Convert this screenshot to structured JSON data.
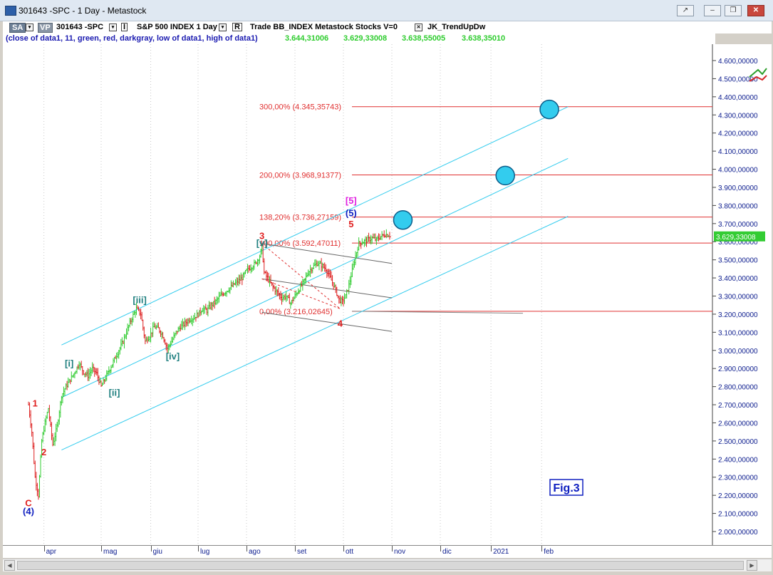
{
  "window": {
    "title": "301643 -SPC - 1 Day - Metastock",
    "min": "–",
    "restore": "❐",
    "close": "✕",
    "help": "↗"
  },
  "toolbar": {
    "sa": "SA",
    "vp": "VP",
    "symbol": "301643 -SPC",
    "i_label": "I",
    "name": "S&P 500 INDEX  1 Day",
    "r_label": "R",
    "trade": "Trade  BB_INDEX  Metastock  Stocks  V=0",
    "x_label": "✕",
    "indicator_name": "JK_TrendUpDw"
  },
  "indicator": {
    "formula": "(close of data1,  11,  green,  red,  darkgray,  low of data1,  high of data1)",
    "values": [
      "3.644,31006",
      "3.629,33008",
      "3.638,55005",
      "3.638,35010"
    ]
  },
  "price_label": "3.629,33008",
  "fig_label": "Fig.3",
  "chart_data": {
    "type": "bar",
    "title": "",
    "ylim": [
      1950,
      4700
    ],
    "y_ticks": [
      {
        "v": 2000,
        "label": "2.000,00000"
      },
      {
        "v": 2100,
        "label": "2.100,00000"
      },
      {
        "v": 2200,
        "label": "2.200,00000"
      },
      {
        "v": 2300,
        "label": "2.300,00000"
      },
      {
        "v": 2400,
        "label": "2.400,00000"
      },
      {
        "v": 2500,
        "label": "2.500,00000"
      },
      {
        "v": 2600,
        "label": "2.600,00000"
      },
      {
        "v": 2700,
        "label": "2.700,00000"
      },
      {
        "v": 2800,
        "label": "2.800,00000"
      },
      {
        "v": 2900,
        "label": "2.900,00000"
      },
      {
        "v": 3000,
        "label": "3.000,00000"
      },
      {
        "v": 3100,
        "label": "3.100,00000"
      },
      {
        "v": 3200,
        "label": "3.200,00000"
      },
      {
        "v": 3300,
        "label": "3.300,00000"
      },
      {
        "v": 3400,
        "label": "3.400,00000"
      },
      {
        "v": 3500,
        "label": "3.500,00000"
      },
      {
        "v": 3600,
        "label": "3.600,00000"
      },
      {
        "v": 3700,
        "label": "3.700,00000"
      },
      {
        "v": 3800,
        "label": "3.800,00000"
      },
      {
        "v": 3900,
        "label": "3.900,00000"
      },
      {
        "v": 4000,
        "label": "4.000,00000"
      },
      {
        "v": 4100,
        "label": "4.100,00000"
      },
      {
        "v": 4200,
        "label": "4.200,00000"
      },
      {
        "v": 4300,
        "label": "4.300,00000"
      },
      {
        "v": 4400,
        "label": "4.400,00000"
      },
      {
        "v": 4500,
        "label": "4.500,00000"
      },
      {
        "v": 4600,
        "label": "4.600,00000"
      }
    ],
    "x_ticks": [
      "apr",
      "mag",
      "giu",
      "lug",
      "ago",
      "set",
      "ott",
      "nov",
      "dic",
      "2021",
      "feb"
    ],
    "x_tick_days": [
      14,
      66,
      111,
      154,
      198,
      242,
      286,
      330,
      374,
      420,
      466
    ],
    "fib_levels": [
      {
        "pct": "300,00%",
        "value": 4345.35743,
        "label": "300,00% (4.345,35743)"
      },
      {
        "pct": "200,00%",
        "value": 3968.91377,
        "label": "200,00% (3.968,91377)"
      },
      {
        "pct": "138,20%",
        "value": 3736.27159,
        "label": "138,20% (3.736,27159)"
      },
      {
        "pct": "100,00%",
        "value": 3592.47011,
        "label": "100,00% (3.592,47011)"
      },
      {
        "pct": "0,00%",
        "value": 3216.02645,
        "label": "0,00% (3.216,02645)"
      }
    ],
    "wave_labels": [
      {
        "text": "C",
        "day": 0,
        "price": 2140,
        "color": "#e02020"
      },
      {
        "text": "(4)",
        "day": 0,
        "price": 2095,
        "color": "#1020c0"
      },
      {
        "text": "1",
        "day": 6,
        "price": 2690,
        "color": "#e02020"
      },
      {
        "text": "2",
        "day": 14,
        "price": 2420,
        "color": "#e02020"
      },
      {
        "text": "[i]",
        "day": 37,
        "price": 2910,
        "color": "#208080"
      },
      {
        "text": "[ii]",
        "day": 78,
        "price": 2750,
        "color": "#208080"
      },
      {
        "text": "[iii]",
        "day": 101,
        "price": 3260,
        "color": "#208080"
      },
      {
        "text": "[iv]",
        "day": 131,
        "price": 2950,
        "color": "#208080"
      },
      {
        "text": "[v]",
        "day": 212,
        "price": 3575,
        "color": "#208080"
      },
      {
        "text": "3",
        "day": 212,
        "price": 3615,
        "color": "#e02020"
      },
      {
        "text": "4",
        "day": 283,
        "price": 3130,
        "color": "#e02020"
      },
      {
        "text": "5",
        "day": 293,
        "price": 3680,
        "color": "#e02020"
      },
      {
        "text": "(5)",
        "day": 293,
        "price": 3740,
        "color": "#1020c0"
      },
      {
        "text": "[5]",
        "day": 293,
        "price": 3810,
        "color": "#e020e0"
      }
    ],
    "price_series": {
      "anchors": [
        [
          0,
          2700
        ],
        [
          3,
          2550
        ],
        [
          6,
          2300
        ],
        [
          9,
          2200
        ],
        [
          12,
          2500
        ],
        [
          15,
          2600
        ],
        [
          18,
          2680
        ],
        [
          22,
          2480
        ],
        [
          26,
          2580
        ],
        [
          30,
          2750
        ],
        [
          34,
          2800
        ],
        [
          38,
          2840
        ],
        [
          42,
          2880
        ],
        [
          46,
          2930
        ],
        [
          50,
          2880
        ],
        [
          54,
          2860
        ],
        [
          58,
          2900
        ],
        [
          62,
          2870
        ],
        [
          66,
          2800
        ],
        [
          70,
          2850
        ],
        [
          74,
          2900
        ],
        [
          78,
          2950
        ],
        [
          82,
          3000
        ],
        [
          86,
          3050
        ],
        [
          90,
          3120
        ],
        [
          94,
          3180
        ],
        [
          98,
          3230
        ],
        [
          102,
          3200
        ],
        [
          106,
          3050
        ],
        [
          110,
          3080
        ],
        [
          114,
          3130
        ],
        [
          118,
          3120
        ],
        [
          122,
          3080
        ],
        [
          126,
          3010
        ],
        [
          130,
          3050
        ],
        [
          134,
          3100
        ],
        [
          138,
          3130
        ],
        [
          142,
          3150
        ],
        [
          146,
          3170
        ],
        [
          150,
          3180
        ],
        [
          154,
          3200
        ],
        [
          158,
          3230
        ],
        [
          162,
          3220
        ],
        [
          166,
          3250
        ],
        [
          170,
          3270
        ],
        [
          174,
          3300
        ],
        [
          178,
          3320
        ],
        [
          182,
          3340
        ],
        [
          186,
          3360
        ],
        [
          190,
          3380
        ],
        [
          194,
          3400
        ],
        [
          198,
          3440
        ],
        [
          202,
          3460
        ],
        [
          206,
          3480
        ],
        [
          210,
          3520
        ],
        [
          212,
          3570
        ],
        [
          214,
          3430
        ],
        [
          218,
          3390
        ],
        [
          222,
          3350
        ],
        [
          226,
          3320
        ],
        [
          230,
          3290
        ],
        [
          234,
          3300
        ],
        [
          238,
          3260
        ],
        [
          242,
          3300
        ],
        [
          246,
          3340
        ],
        [
          250,
          3380
        ],
        [
          254,
          3430
        ],
        [
          258,
          3460
        ],
        [
          262,
          3480
        ],
        [
          266,
          3470
        ],
        [
          270,
          3450
        ],
        [
          274,
          3400
        ],
        [
          278,
          3350
        ],
        [
          282,
          3280
        ],
        [
          285,
          3270
        ],
        [
          288,
          3300
        ],
        [
          291,
          3360
        ],
        [
          294,
          3440
        ],
        [
          297,
          3520
        ],
        [
          300,
          3590
        ],
        [
          304,
          3600
        ],
        [
          308,
          3610
        ],
        [
          312,
          3620
        ],
        [
          316,
          3610
        ],
        [
          320,
          3630
        ],
        [
          324,
          3640
        ],
        [
          328,
          3635
        ]
      ]
    },
    "channels": [
      {
        "name": "upper",
        "x0": 30,
        "y0": 3030,
        "x1": 490,
        "y1": 4345
      },
      {
        "name": "middle",
        "x0": 30,
        "y0": 2740,
        "x1": 490,
        "y1": 4060
      },
      {
        "name": "lower",
        "x0": 30,
        "y0": 2450,
        "x1": 490,
        "y1": 3740
      }
    ],
    "targets": [
      {
        "day": 473,
        "price": 4330
      },
      {
        "day": 433,
        "price": 3965
      },
      {
        "day": 340,
        "price": 3720
      }
    ],
    "grey_channel": [
      {
        "x0": 212,
        "y0": 3590,
        "x1": 330,
        "y1": 3480
      },
      {
        "x0": 212,
        "y0": 3395,
        "x1": 330,
        "y1": 3290
      },
      {
        "x0": 212,
        "y0": 3210,
        "x1": 330,
        "y1": 3105
      }
    ],
    "colors": {
      "up": "#33cc33",
      "down": "#dd2020",
      "neutral": "#888888",
      "channel": "#33ccee",
      "fib": "#e03030",
      "target": "#33ccee"
    }
  }
}
